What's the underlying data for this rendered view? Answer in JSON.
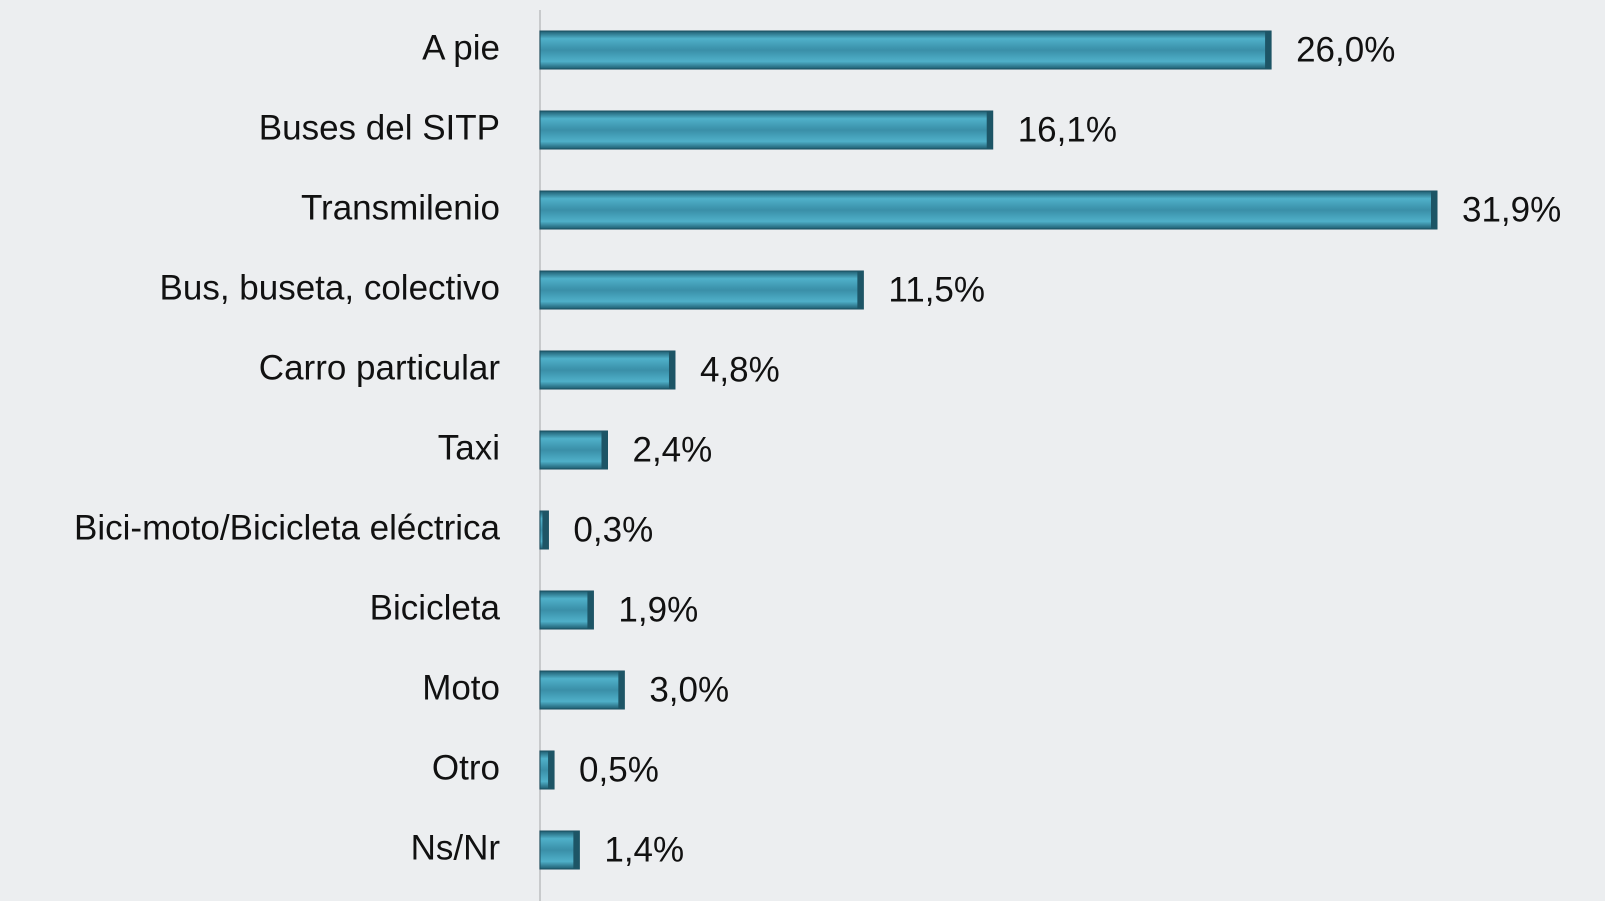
{
  "chart_data": {
    "type": "bar",
    "orientation": "horizontal",
    "color": "#3a8fa8",
    "categories": [
      "A pie",
      "Buses del SITP",
      "Transmilenio",
      "Bus, buseta, colectivo",
      "Carro particular",
      "Taxi",
      "Bici-moto/Bicicleta eléctrica",
      "Bicicleta",
      "Moto",
      "Otro",
      "Ns/Nr"
    ],
    "values": [
      26.0,
      16.1,
      31.9,
      11.5,
      4.8,
      2.4,
      0.3,
      1.9,
      3.0,
      0.5,
      1.4
    ],
    "value_labels": [
      "26,0%",
      "16,1%",
      "31,9%",
      "11,5%",
      "4,8%",
      "2,4%",
      "0,3%",
      "1,9%",
      "3,0%",
      "0,5%",
      "1,4%"
    ]
  }
}
